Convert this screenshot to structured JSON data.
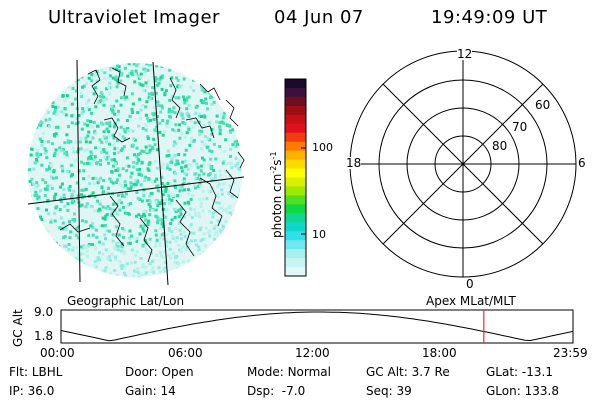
{
  "header": {
    "instrument": "Ultraviolet Imager",
    "date": "04 Jun 07",
    "time": "19:49:09 UT"
  },
  "colorbar": {
    "unit_label": "photon cm",
    "unit_sup1": "-2",
    "unit_mid": "s",
    "unit_sup2": "-1",
    "ticks": [
      "100",
      "10"
    ],
    "colors": [
      "#1a0a2e",
      "#3d0f3d",
      "#6e0f1f",
      "#9e0f14",
      "#c81018",
      "#e0101c",
      "#f03c10",
      "#ff7a00",
      "#ffb000",
      "#ffd800",
      "#ffff00",
      "#d8f000",
      "#a0e800",
      "#50e020",
      "#10d840",
      "#10d890",
      "#10d8c8",
      "#30e0e8",
      "#70e8f0",
      "#a8f0f0",
      "#c8f4f2",
      "#e0f8f6"
    ]
  },
  "polar": {
    "mlt_labels": [
      "12",
      "18",
      "6",
      "0"
    ],
    "lat_labels": [
      "60",
      "70",
      "80"
    ]
  },
  "labels": {
    "geo": "Geographic Lat/Lon",
    "apex": "Apex MLat/MLT"
  },
  "timeline": {
    "axis_title": "GC Alt",
    "alt_max": "9.0",
    "alt_min": "1.8",
    "times": [
      "00:00",
      "06:00",
      "12:00",
      "18:00",
      "23:59"
    ],
    "marker_hours": 19.82
  },
  "status": {
    "flt_label": "Flt:",
    "flt_value": "LBHL",
    "ip_label": "IP:",
    "ip_value": "36.0",
    "door_label": "Door:",
    "door_value": "Open",
    "gain_label": "Gain:",
    "gain_value": "14",
    "mode_label": "Mode:",
    "mode_value": "Normal",
    "dsp_label": "Dsp:",
    "dsp_value": "-7.0",
    "gcalt_label": "GC Alt:",
    "gcalt_value": "3.7 Re",
    "seq_label": "Seq:",
    "seq_value": "39",
    "glat_label": "GLat:",
    "glat_value": "-13.1",
    "glon_label": "GLon:",
    "glon_value": "133.8"
  }
}
